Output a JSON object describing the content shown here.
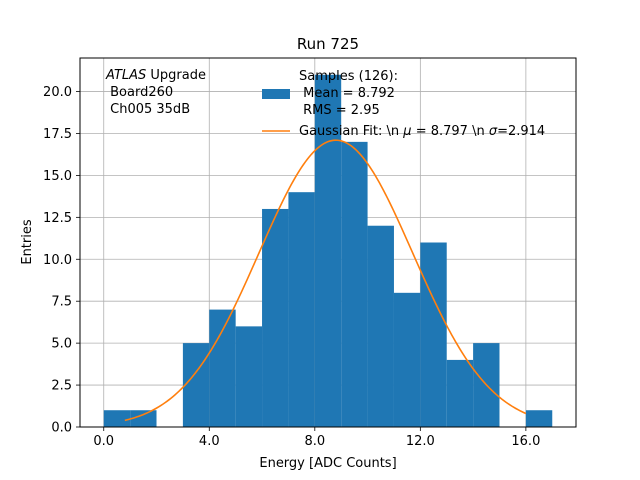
{
  "chart_data": {
    "type": "bar",
    "title": "Run 725",
    "xlabel": "Energy [ADC Counts]",
    "ylabel": "Entries",
    "xlim": [
      -0.9,
      17.9
    ],
    "ylim": [
      0,
      22
    ],
    "grid": true,
    "legend_position": "top-right",
    "xticks": [
      0,
      4,
      8,
      12,
      16
    ],
    "xtick_labels": [
      "0.0",
      "4.0",
      "8.0",
      "12.0",
      "16.0"
    ],
    "yticks": [
      0,
      2.5,
      5,
      7.5,
      10,
      12.5,
      15,
      17.5,
      20
    ],
    "ytick_labels": [
      "0.0",
      "2.5",
      "5.0",
      "7.5",
      "10.0",
      "12.5",
      "15.0",
      "17.5",
      "20.0"
    ],
    "bin_edges": [
      0,
      1,
      2,
      3,
      4,
      5,
      6,
      7,
      8,
      9,
      10,
      11,
      12,
      13,
      14,
      15,
      16,
      17
    ],
    "counts": [
      1,
      1,
      0,
      5,
      7,
      6,
      13,
      14,
      21,
      17,
      12,
      8,
      11,
      4,
      5,
      0,
      1
    ],
    "histogram_color": "#1f77b4",
    "fit_color": "#ff7f0e",
    "fit": {
      "mu": 8.797,
      "sigma": 2.914,
      "amplitude": 17.1,
      "x_range": [
        0.8,
        16.0
      ]
    },
    "annotation": {
      "atlas_italic": "ATLAS",
      "line1_rest": " Upgrade",
      "line2": " Board260",
      "line3": " Ch005 35dB"
    },
    "legend": {
      "hist_line1": "Samples (126):",
      "hist_line2": " Mean = 8.792",
      "hist_line3": " RMS = 2.95",
      "fit_prefix": "Gaussian Fit: \\n ",
      "fit_mu_symbol": "μ",
      "fit_mu_value": " = 8.797 \\n ",
      "fit_sigma_symbol": "σ",
      "fit_sigma_value": "=2.914"
    }
  }
}
